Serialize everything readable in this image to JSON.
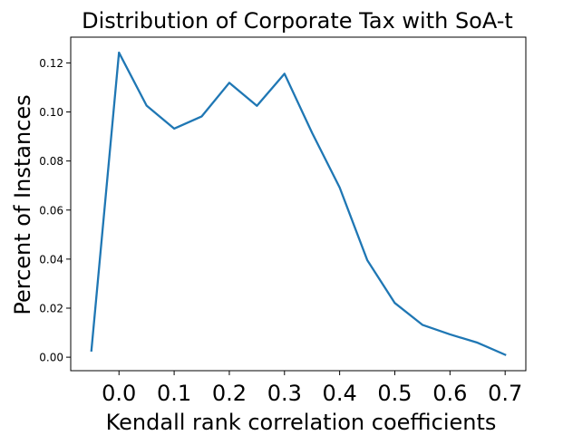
{
  "chart_data": {
    "type": "line",
    "title": "Distribution of Corporate Tax with SoA-t",
    "xlabel": "Kendall rank correlation coefficients",
    "ylabel": "Percent of Instances",
    "xlim": [
      -0.0875,
      0.7375
    ],
    "ylim": [
      -0.0055,
      0.1305
    ],
    "xticks": [
      0.0,
      0.1,
      0.2,
      0.3,
      0.4,
      0.5,
      0.6,
      0.7
    ],
    "xtick_labels": [
      "0.0",
      "0.1",
      "0.2",
      "0.3",
      "0.4",
      "0.5",
      "0.6",
      "0.7"
    ],
    "yticks": [
      0.0,
      0.02,
      0.04,
      0.06,
      0.08,
      0.1,
      0.12
    ],
    "ytick_labels": [
      "0.00",
      "0.02",
      "0.04",
      "0.06",
      "0.08",
      "0.10",
      "0.12"
    ],
    "grid": false,
    "series": [
      {
        "color": "#1f77b4",
        "x": [
          -0.05,
          0.0,
          0.05,
          0.1,
          0.15,
          0.2,
          0.25,
          0.3,
          0.35,
          0.4,
          0.45,
          0.5,
          0.55,
          0.6,
          0.65,
          0.7
        ],
        "y": [
          0.0027,
          0.1242,
          0.1026,
          0.0932,
          0.0982,
          0.1119,
          0.1025,
          0.1156,
          0.0915,
          0.0692,
          0.0396,
          0.0221,
          0.0132,
          0.0093,
          0.0059,
          0.001
        ]
      }
    ]
  }
}
